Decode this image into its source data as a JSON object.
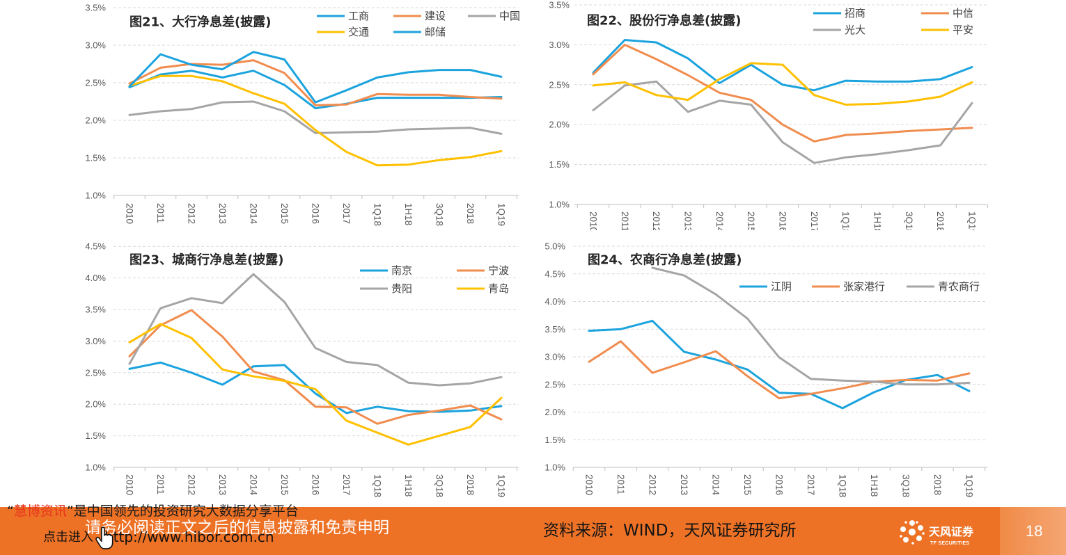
{
  "chart_data": [
    {
      "type": "line",
      "title": "图21、大行净息差(披露)",
      "categories": [
        "2010",
        "2011",
        "2012",
        "2013",
        "2014",
        "2015",
        "2016",
        "2017",
        "1Q18",
        "1H18",
        "3Q18",
        "2018",
        "1Q19"
      ],
      "yticks": [
        1.0,
        1.5,
        2.0,
        2.5,
        3.0,
        3.5
      ],
      "ytick_labels": [
        "1.0%",
        "1.5%",
        "2.0%",
        "2.5%",
        "3.0%",
        "3.5%"
      ],
      "ylim": [
        1.0,
        3.5
      ],
      "grid": true,
      "legend": "top-right",
      "series": [
        {
          "name": "工商",
          "color": "#1BA3DE",
          "values": [
            2.44,
            2.61,
            2.66,
            2.57,
            2.66,
            2.47,
            2.16,
            2.22,
            2.3,
            2.3,
            2.3,
            2.3,
            2.31
          ]
        },
        {
          "name": "建设",
          "color": "#F08C4E",
          "values": [
            2.49,
            2.7,
            2.75,
            2.74,
            2.8,
            2.63,
            2.2,
            2.21,
            2.35,
            2.34,
            2.34,
            2.31,
            2.29
          ]
        },
        {
          "name": "中国",
          "color": "#A5A5A5",
          "values": [
            2.07,
            2.12,
            2.15,
            2.24,
            2.25,
            2.12,
            1.83,
            1.84,
            1.85,
            1.88,
            1.89,
            1.9,
            1.82
          ]
        },
        {
          "name": "交通",
          "color": "#FFC000",
          "values": [
            2.46,
            2.59,
            2.59,
            2.52,
            2.36,
            2.22,
            1.87,
            1.58,
            1.4,
            1.41,
            1.47,
            1.51,
            1.59
          ]
        },
        {
          "name": "邮储",
          "color": "#1BA3DE",
          "values": [
            2.45,
            2.88,
            2.74,
            2.68,
            2.91,
            2.81,
            2.24,
            2.4,
            2.57,
            2.64,
            2.67,
            2.67,
            2.58
          ]
        }
      ]
    },
    {
      "type": "line",
      "title": "图22、股份行净息差(披露)",
      "categories": [
        "2010",
        "2011",
        "2012",
        "2013",
        "2014",
        "2015",
        "2016",
        "2017",
        "1Q18",
        "1H18",
        "3Q18",
        "2018",
        "1Q19"
      ],
      "yticks": [
        1.0,
        1.5,
        2.0,
        2.5,
        3.0,
        3.5
      ],
      "ytick_labels": [
        "1.0%",
        "1.5%",
        "2.0%",
        "2.5%",
        "3.0%",
        "3.5%"
      ],
      "ylim": [
        1.0,
        3.5
      ],
      "grid": true,
      "legend": "top-right",
      "series": [
        {
          "name": "招商",
          "color": "#1BA3DE",
          "values": [
            2.65,
            3.06,
            3.03,
            2.83,
            2.52,
            2.75,
            2.5,
            2.43,
            2.55,
            2.54,
            2.54,
            2.57,
            2.72
          ]
        },
        {
          "name": "中信",
          "color": "#F08C4E",
          "values": [
            2.63,
            3.0,
            2.82,
            2.62,
            2.4,
            2.31,
            2.0,
            1.79,
            1.87,
            1.89,
            1.92,
            1.94,
            1.96
          ]
        },
        {
          "name": "光大",
          "color": "#A5A5A5",
          "values": [
            2.18,
            2.49,
            2.54,
            2.16,
            2.3,
            2.25,
            1.78,
            1.52,
            1.59,
            1.63,
            1.68,
            1.74,
            2.27
          ]
        },
        {
          "name": "平安",
          "color": "#FFC000",
          "values": [
            2.49,
            2.53,
            2.37,
            2.31,
            2.57,
            2.77,
            2.75,
            2.37,
            2.25,
            2.26,
            2.29,
            2.35,
            2.53
          ]
        }
      ]
    },
    {
      "type": "line",
      "title": "图23、城商行净息差(披露)",
      "categories": [
        "2010",
        "2011",
        "2012",
        "2013",
        "2014",
        "2015",
        "2016",
        "2017",
        "1Q18",
        "1H18",
        "3Q18",
        "2018",
        "1Q19"
      ],
      "yticks": [
        1.0,
        1.5,
        2.0,
        2.5,
        3.0,
        3.5,
        4.0,
        4.5
      ],
      "ytick_labels": [
        "1.0%",
        "1.5%",
        "2.0%",
        "2.5%",
        "3.0%",
        "3.5%",
        "4.0%",
        "4.5%"
      ],
      "ylim": [
        1.0,
        4.5
      ],
      "grid": true,
      "legend": "top-right",
      "series": [
        {
          "name": "南京",
          "color": "#1BA3DE",
          "values": [
            2.56,
            2.66,
            2.5,
            2.31,
            2.6,
            2.62,
            2.17,
            1.86,
            1.96,
            1.89,
            1.88,
            1.9,
            1.97
          ]
        },
        {
          "name": "宁波",
          "color": "#F08C4E",
          "values": [
            2.76,
            3.25,
            3.49,
            3.07,
            2.52,
            2.38,
            1.96,
            1.95,
            1.69,
            1.83,
            1.9,
            1.98,
            1.76
          ]
        },
        {
          "name": "贵阳",
          "color": "#A5A5A5",
          "values": [
            2.64,
            3.52,
            3.68,
            3.6,
            4.06,
            3.62,
            2.89,
            2.67,
            2.62,
            2.34,
            2.3,
            2.33,
            2.43
          ]
        },
        {
          "name": "青岛",
          "color": "#FFC000",
          "values": [
            2.98,
            3.27,
            3.05,
            2.55,
            2.44,
            2.37,
            2.24,
            1.74,
            1.55,
            1.36,
            1.5,
            1.64,
            2.1
          ]
        }
      ]
    },
    {
      "type": "line",
      "title": "图24、农商行净息差(披露)",
      "categories": [
        "2010",
        "2011",
        "2012",
        "2013",
        "2014",
        "2015",
        "2016",
        "2017",
        "1Q18",
        "1H18",
        "3Q18",
        "2018",
        "1Q19"
      ],
      "yticks": [
        1.0,
        1.5,
        2.0,
        2.5,
        3.0,
        3.5,
        4.0,
        4.5,
        5.0
      ],
      "ytick_labels": [
        "1.0%",
        "1.5%",
        "2.0%",
        "2.5%",
        "3.0%",
        "3.5%",
        "4.0%",
        "4.5%",
        "5.0%"
      ],
      "ylim": [
        1.0,
        5.0
      ],
      "grid": true,
      "legend": "top-right",
      "series": [
        {
          "name": "江阴",
          "color": "#1BA3DE",
          "values": [
            3.47,
            3.5,
            3.65,
            3.09,
            2.95,
            2.77,
            2.35,
            2.33,
            2.07,
            2.36,
            2.58,
            2.67,
            2.38
          ]
        },
        {
          "name": "张家港行",
          "color": "#F08C4E",
          "values": [
            2.91,
            3.28,
            2.71,
            2.9,
            3.1,
            2.65,
            2.25,
            2.33,
            2.43,
            2.55,
            2.58,
            2.57,
            2.7
          ]
        },
        {
          "name": "青农商行",
          "color": "#A5A5A5",
          "values": [
            null,
            null,
            4.61,
            4.47,
            4.13,
            3.69,
            2.99,
            2.6,
            2.57,
            2.55,
            2.5,
            2.5,
            2.53
          ]
        }
      ]
    }
  ],
  "footer": {
    "disclaimer": "请务必阅读正文之后的信息披露和免责申明",
    "source": "资料来源：WIND，天风证券研究所",
    "logo_icon": "tf-flower-logo-icon",
    "logo_cn": "天风证券",
    "logo_en": "TF SECURITIES",
    "page_number": "18",
    "banner_color": "#ED7226"
  },
  "watermark": {
    "quote_open": "“",
    "brand": "慧博资讯",
    "tagline": "”是中国领先的投资研究大数据分享平台",
    "link_label": "点击进入",
    "link_icon": "hand-pointer-icon",
    "url": "http://www.hibor.com.cn",
    "brand_color": "#E8341C"
  }
}
